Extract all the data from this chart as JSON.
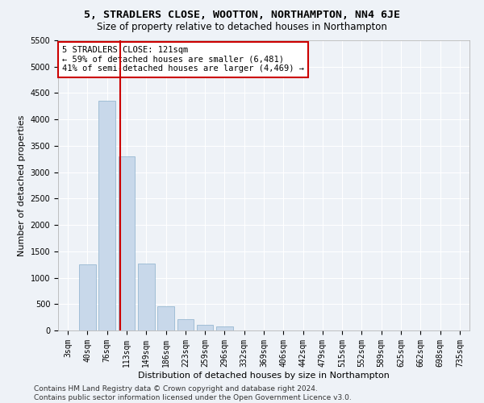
{
  "title1": "5, STRADLERS CLOSE, WOOTTON, NORTHAMPTON, NN4 6JE",
  "title2": "Size of property relative to detached houses in Northampton",
  "xlabel": "Distribution of detached houses by size in Northampton",
  "ylabel": "Number of detached properties",
  "categories": [
    "3sqm",
    "40sqm",
    "76sqm",
    "113sqm",
    "149sqm",
    "186sqm",
    "223sqm",
    "259sqm",
    "296sqm",
    "332sqm",
    "369sqm",
    "406sqm",
    "442sqm",
    "479sqm",
    "515sqm",
    "552sqm",
    "589sqm",
    "625sqm",
    "662sqm",
    "698sqm",
    "735sqm"
  ],
  "values": [
    0,
    1250,
    4350,
    3300,
    1270,
    460,
    210,
    100,
    70,
    0,
    0,
    0,
    0,
    0,
    0,
    0,
    0,
    0,
    0,
    0,
    0
  ],
  "bar_color": "#c8d8ea",
  "bar_edge_color": "#8ab0cc",
  "vline_x": 2.65,
  "vline_color": "#cc0000",
  "annotation_text": "5 STRADLERS CLOSE: 121sqm\n← 59% of detached houses are smaller (6,481)\n41% of semi-detached houses are larger (4,469) →",
  "annotation_box_color": "white",
  "annotation_box_edge": "#cc0000",
  "ylim_max": 5500,
  "yticks": [
    0,
    500,
    1000,
    1500,
    2000,
    2500,
    3000,
    3500,
    4000,
    4500,
    5000,
    5500
  ],
  "footnote": "Contains HM Land Registry data © Crown copyright and database right 2024.\nContains public sector information licensed under the Open Government Licence v3.0.",
  "bg_color": "#eef2f7",
  "grid_color": "#ffffff",
  "title1_fontsize": 9.5,
  "title2_fontsize": 8.5,
  "tick_fontsize": 7,
  "axis_label_fontsize": 8,
  "annot_fontsize": 7.5,
  "footnote_fontsize": 6.5
}
